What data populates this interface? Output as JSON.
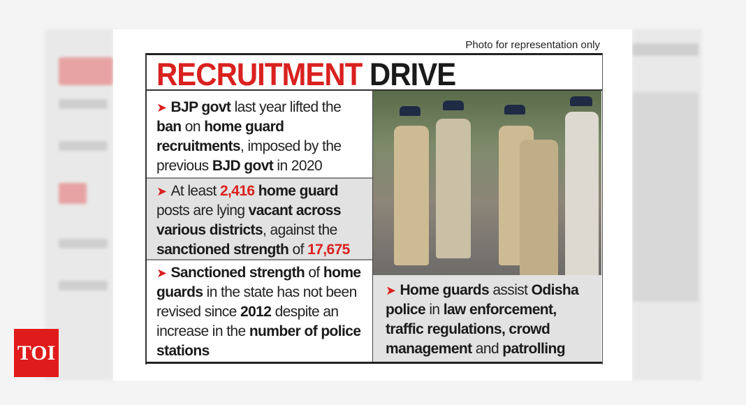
{
  "credit": "Photo for representation only",
  "title": {
    "red": "RECRUITMENT",
    "black": "DRIVE"
  },
  "logo": "TOI",
  "colors": {
    "accent_red": "#d9211f",
    "gray_box": "#e2e2e2"
  },
  "photo": {
    "description_icon": "police-home-guards-photo"
  },
  "bullets": [
    {
      "segments": [
        {
          "t": "BJP govt",
          "s": "b"
        },
        {
          "t": " last year lifted the ",
          "s": ""
        },
        {
          "t": "ban",
          "s": "b"
        },
        {
          "t": " on ",
          "s": ""
        },
        {
          "t": "home guard recruitments",
          "s": "b"
        },
        {
          "t": ", imposed by the previous ",
          "s": ""
        },
        {
          "t": "BJD govt",
          "s": "b"
        },
        {
          "t": " in 2020",
          "s": ""
        }
      ]
    },
    {
      "segments": [
        {
          "t": "At least ",
          "s": ""
        },
        {
          "t": "2,416",
          "s": "r"
        },
        {
          "t": " home guard",
          "s": "b"
        },
        {
          "t": " posts are lying ",
          "s": ""
        },
        {
          "t": "vacant across various districts",
          "s": "b"
        },
        {
          "t": ", against the ",
          "s": ""
        },
        {
          "t": "sanctioned strength",
          "s": "b"
        },
        {
          "t": " of ",
          "s": ""
        },
        {
          "t": "17,675",
          "s": "r"
        }
      ]
    },
    {
      "segments": [
        {
          "t": "Sanctioned strength",
          "s": "b"
        },
        {
          "t": " of ",
          "s": ""
        },
        {
          "t": "home guards",
          "s": "b"
        },
        {
          "t": " in the state has not been revised since ",
          "s": ""
        },
        {
          "t": "2012",
          "s": "b"
        },
        {
          "t": " despite an increase in the ",
          "s": ""
        },
        {
          "t": "number of police stations",
          "s": "b"
        }
      ]
    },
    {
      "segments": [
        {
          "t": "Home guards",
          "s": "b"
        },
        {
          "t": " assist ",
          "s": ""
        },
        {
          "t": "Odisha police",
          "s": "b"
        },
        {
          "t": " in ",
          "s": ""
        },
        {
          "t": "law enforcement, traffic regulations, crowd management",
          "s": "b"
        },
        {
          "t": " and ",
          "s": ""
        },
        {
          "t": "patrolling",
          "s": "b"
        }
      ]
    }
  ]
}
